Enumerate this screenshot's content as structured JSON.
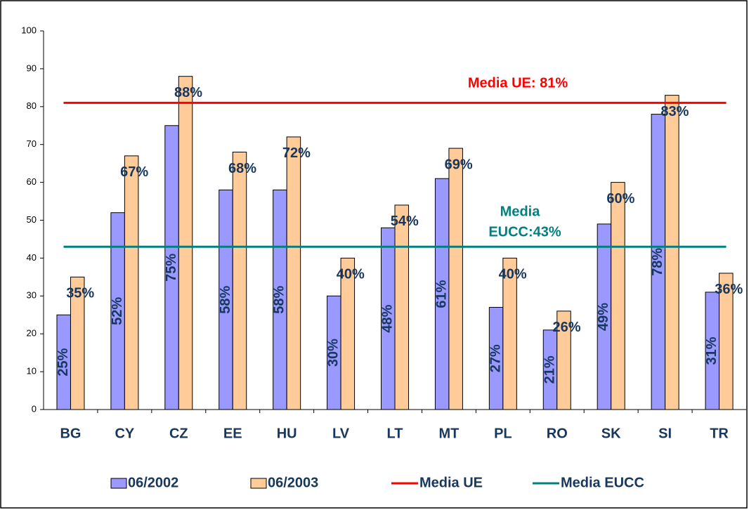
{
  "chart_data": {
    "type": "bar",
    "categories": [
      "BG",
      "CY",
      "CZ",
      "EE",
      "HU",
      "LV",
      "LT",
      "MT",
      "PL",
      "RO",
      "SK",
      "SI",
      "TR"
    ],
    "series": [
      {
        "name": "06/2002",
        "color": "#9999ff",
        "values": [
          25,
          52,
          75,
          58,
          58,
          30,
          48,
          61,
          27,
          21,
          49,
          78,
          31
        ],
        "value_labels": [
          "25%",
          "52%",
          "75%",
          "58%",
          "58%",
          "30%",
          "48%",
          "61%",
          "27%",
          "21%",
          "49%",
          "78%",
          "31%"
        ]
      },
      {
        "name": "06/2003",
        "color": "#ffcc99",
        "values": [
          35,
          67,
          88,
          68,
          72,
          40,
          54,
          69,
          40,
          26,
          60,
          83,
          36
        ],
        "value_labels": [
          "35%",
          "67%",
          "88%",
          "68%",
          "72%",
          "40%",
          "54%",
          "69%",
          "40%",
          "26%",
          "60%",
          "83%",
          "36%"
        ]
      }
    ],
    "reference_lines": [
      {
        "name": "Media UE",
        "color": "#ff0000",
        "value": 81
      },
      {
        "name": "Media EUCC",
        "color": "#008080",
        "value": 43
      }
    ],
    "annotations": [
      {
        "lines": [
          "Media UE: 81%"
        ],
        "color": "#ff0000"
      },
      {
        "lines": [
          "Media",
          "EUCC:43%"
        ],
        "color": "#008080"
      }
    ],
    "ylim": [
      0,
      100
    ],
    "yticks": [
      0,
      10,
      20,
      30,
      40,
      50,
      60,
      70,
      80,
      90,
      100
    ],
    "grid": false
  }
}
